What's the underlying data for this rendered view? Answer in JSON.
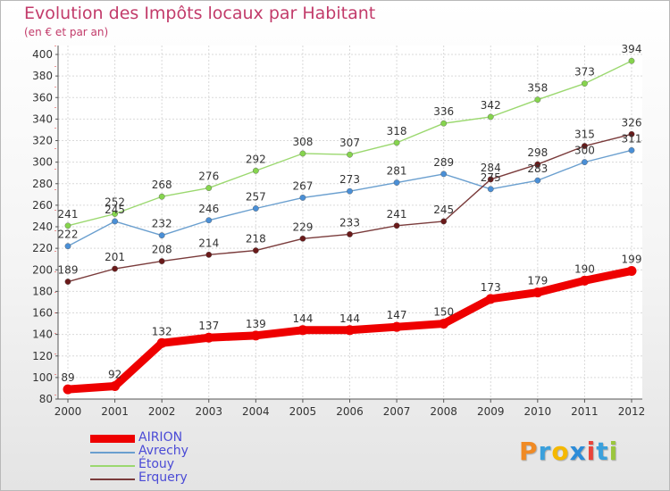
{
  "chart_data": {
    "type": "line",
    "title": "Evolution des Impôts locaux par Habitant",
    "subtitle": "(en € et par an)",
    "x": [
      "2000",
      "2001",
      "2002",
      "2003",
      "2004",
      "2005",
      "2006",
      "2007",
      "2008",
      "2009",
      "2010",
      "2011",
      "2012"
    ],
    "ylim": [
      80,
      400
    ],
    "yticks": [
      80,
      100,
      120,
      140,
      160,
      180,
      200,
      220,
      240,
      260,
      280,
      300,
      320,
      340,
      360,
      380,
      400
    ],
    "grid": true,
    "legend_position": "bottom-left",
    "series": [
      {
        "name": "AIRION",
        "color": "#ee0000",
        "marker": "#ee0000",
        "bold": true,
        "values": [
          89,
          92,
          132,
          137,
          139,
          144,
          144,
          147,
          150,
          173,
          179,
          190,
          199
        ]
      },
      {
        "name": "Avrechy",
        "color": "#6a9fcf",
        "marker": "#4a8fd6",
        "bold": false,
        "values": [
          222,
          245,
          232,
          246,
          257,
          267,
          273,
          281,
          289,
          275,
          283,
          300,
          311
        ]
      },
      {
        "name": "Étouy",
        "color": "#9bd86f",
        "marker": "#86d44e",
        "bold": false,
        "values": [
          241,
          252,
          268,
          276,
          292,
          308,
          307,
          318,
          336,
          342,
          358,
          373,
          394
        ]
      },
      {
        "name": "Erquery",
        "color": "#7a3b3b",
        "marker": "#6a1a1a",
        "bold": false,
        "values": [
          189,
          201,
          208,
          214,
          218,
          229,
          233,
          241,
          245,
          284,
          298,
          315,
          326
        ]
      }
    ]
  },
  "logo": {
    "text": "Proxiti",
    "letters": [
      {
        "char": "P",
        "color": "#f08a24"
      },
      {
        "char": "r",
        "color": "#3aa0dc"
      },
      {
        "char": "o",
        "color": "#f5b800"
      },
      {
        "char": "x",
        "color": "#2d8cd8"
      },
      {
        "char": "i",
        "color": "#e9443a"
      },
      {
        "char": "t",
        "color": "#3aa0dc"
      },
      {
        "char": "i",
        "color": "#9ac63d"
      }
    ]
  }
}
